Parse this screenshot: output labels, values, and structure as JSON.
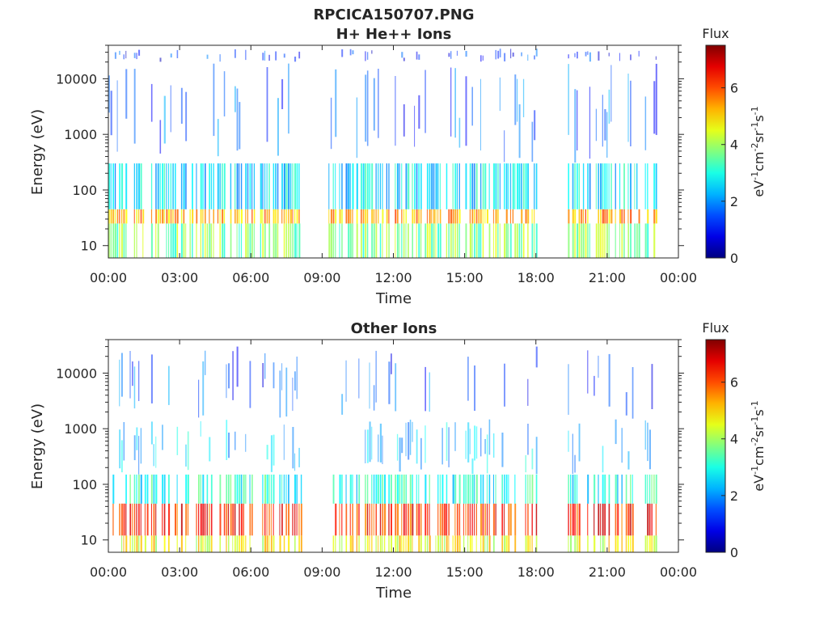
{
  "chart_data": [
    {
      "type": "heatmap",
      "title_line1": "RPCICA150707.PNG",
      "title": "H+ He++ Ions",
      "xlabel": "Time",
      "ylabel": "Energy (eV)",
      "x_ticks": [
        "00:00",
        "03:00",
        "06:00",
        "09:00",
        "12:00",
        "15:00",
        "18:00",
        "21:00",
        "00:00"
      ],
      "xlim_hours": [
        0,
        24
      ],
      "y_scale": "log",
      "y_ticks": [
        "10",
        "100",
        "1000",
        "10000"
      ],
      "ylim_eV": [
        6,
        40000
      ],
      "data_gaps_hours": [
        [
          8.2,
          9.2
        ],
        [
          18.0,
          19.3
        ]
      ],
      "data_end_hour": 23.1,
      "colorbar": {
        "label": "Flux",
        "unit": "eV-1cm-2sr-1s-1",
        "range": [
          0,
          7.5
        ],
        "ticks": [
          "0",
          "2",
          "4",
          "6"
        ],
        "colormap": "jet"
      },
      "bands": [
        {
          "energy_eV": [
            6,
            25
          ],
          "flux": 3.8
        },
        {
          "energy_eV": [
            25,
            45
          ],
          "flux": 5.3
        },
        {
          "energy_eV": [
            45,
            300
          ],
          "flux": 2.6
        },
        {
          "energy_eV": [
            300,
            20000
          ],
          "flux": 1.6
        },
        {
          "energy_eV": [
            20000,
            35000
          ],
          "flux": 1.2
        }
      ]
    },
    {
      "type": "heatmap",
      "title": "Other Ions",
      "xlabel": "Time",
      "ylabel": "Energy (eV)",
      "x_ticks": [
        "00:00",
        "03:00",
        "06:00",
        "09:00",
        "12:00",
        "15:00",
        "18:00",
        "21:00",
        "00:00"
      ],
      "xlim_hours": [
        0,
        24
      ],
      "y_scale": "log",
      "y_ticks": [
        "10",
        "100",
        "1000",
        "10000"
      ],
      "ylim_eV": [
        6,
        40000
      ],
      "data_gaps_hours": [
        [
          8.2,
          9.2
        ],
        [
          18.0,
          19.3
        ]
      ],
      "data_end_hour": 23.1,
      "colorbar": {
        "label": "Flux",
        "unit": "eV-1cm-2sr-1s-1",
        "range": [
          0,
          7.5
        ],
        "ticks": [
          "0",
          "2",
          "4",
          "6"
        ],
        "colormap": "jet"
      },
      "bands": [
        {
          "energy_eV": [
            6,
            12
          ],
          "flux": 4.6
        },
        {
          "energy_eV": [
            12,
            45
          ],
          "flux": 6.3
        },
        {
          "energy_eV": [
            45,
            150
          ],
          "flux": 3.0
        },
        {
          "energy_eV": [
            150,
            1500
          ],
          "flux": 2.4
        },
        {
          "energy_eV": [
            1500,
            30000
          ],
          "flux": 1.5
        }
      ]
    }
  ]
}
